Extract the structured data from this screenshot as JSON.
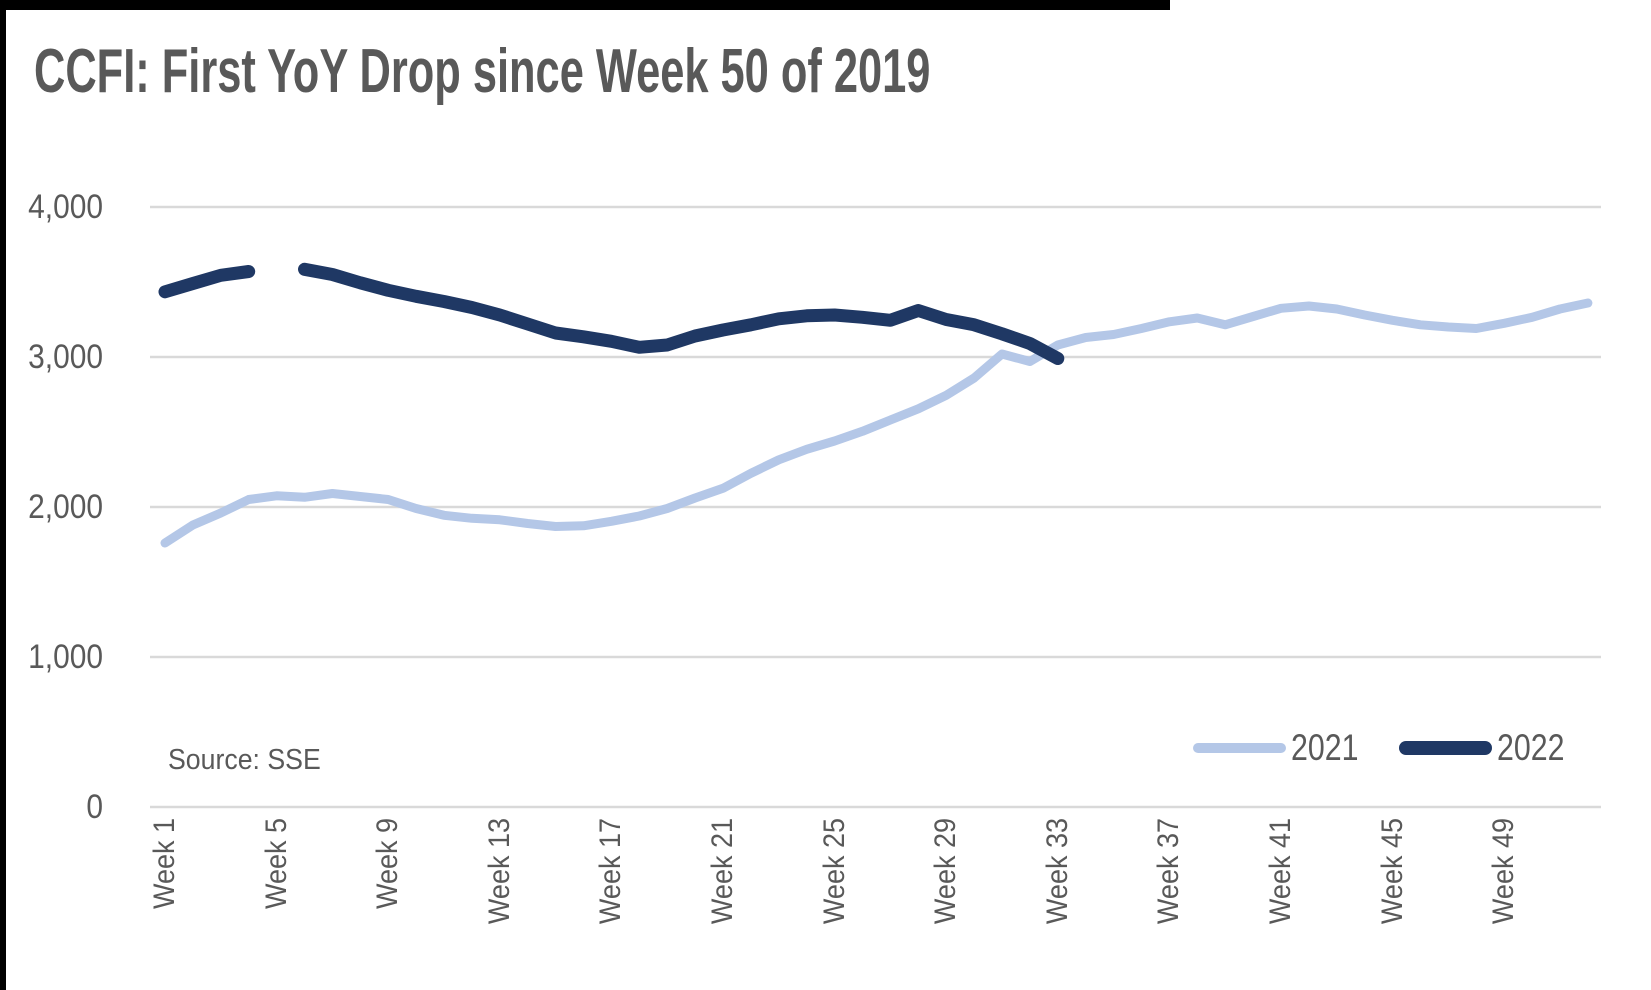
{
  "title": "CCFI: First YoY Drop since Week 50 of 2019",
  "source_note": "Source: SSE",
  "colors": {
    "title_text": "#595959",
    "axis_text": "#595959",
    "gridline": "#d9d9d9",
    "series_2021": "#b4c7e7",
    "series_2022": "#1f3864",
    "page_border": "#000000",
    "background": "#ffffff"
  },
  "chart_data": {
    "type": "line",
    "title": "CCFI: First YoY Drop since Week 50 of 2019",
    "xlabel": "",
    "ylabel": "",
    "ylim": [
      0,
      4000
    ],
    "grid": "horizontal",
    "legend_position": "inside-bottom-right",
    "y_ticks": [
      0,
      1000,
      2000,
      3000,
      4000
    ],
    "y_tick_labels": [
      "0",
      "1,000",
      "2,000",
      "3,000",
      "4,000"
    ],
    "x_tick_weeks": [
      1,
      5,
      9,
      13,
      17,
      21,
      25,
      29,
      33,
      37,
      41,
      45,
      49
    ],
    "x_tick_labels": [
      "Week 1",
      "Week 5",
      "Week 9",
      "Week 13",
      "Week 17",
      "Week 21",
      "Week 25",
      "Week 29",
      "Week 33",
      "Week 37",
      "Week 41",
      "Week 45",
      "Week 49"
    ],
    "series": [
      {
        "name": "2021",
        "color": "#b4c7e7",
        "line_width": 9,
        "start_week": 1,
        "values": [
          1760,
          1880,
          1960,
          2050,
          2075,
          2065,
          2090,
          2070,
          2050,
          1990,
          1945,
          1925,
          1915,
          1890,
          1870,
          1875,
          1905,
          1940,
          1990,
          2060,
          2125,
          2225,
          2315,
          2385,
          2440,
          2505,
          2580,
          2655,
          2745,
          2860,
          3020,
          2970,
          3080,
          3130,
          3150,
          3190,
          3235,
          3260,
          3215,
          3270,
          3325,
          3340,
          3320,
          3280,
          3245,
          3215,
          3200,
          3190,
          3225,
          3265,
          3320,
          3360
        ]
      },
      {
        "name": "2022",
        "color": "#1f3864",
        "line_width": 13,
        "start_week": 1,
        "values": [
          3435,
          3490,
          3545,
          3570,
          null,
          3585,
          3550,
          3495,
          3445,
          3405,
          3370,
          3330,
          3280,
          3220,
          3160,
          3135,
          3105,
          3065,
          3080,
          3140,
          3180,
          3215,
          3255,
          3275,
          3280,
          3265,
          3245,
          3310,
          3250,
          3215,
          3155,
          3090,
          2990
        ]
      }
    ]
  }
}
